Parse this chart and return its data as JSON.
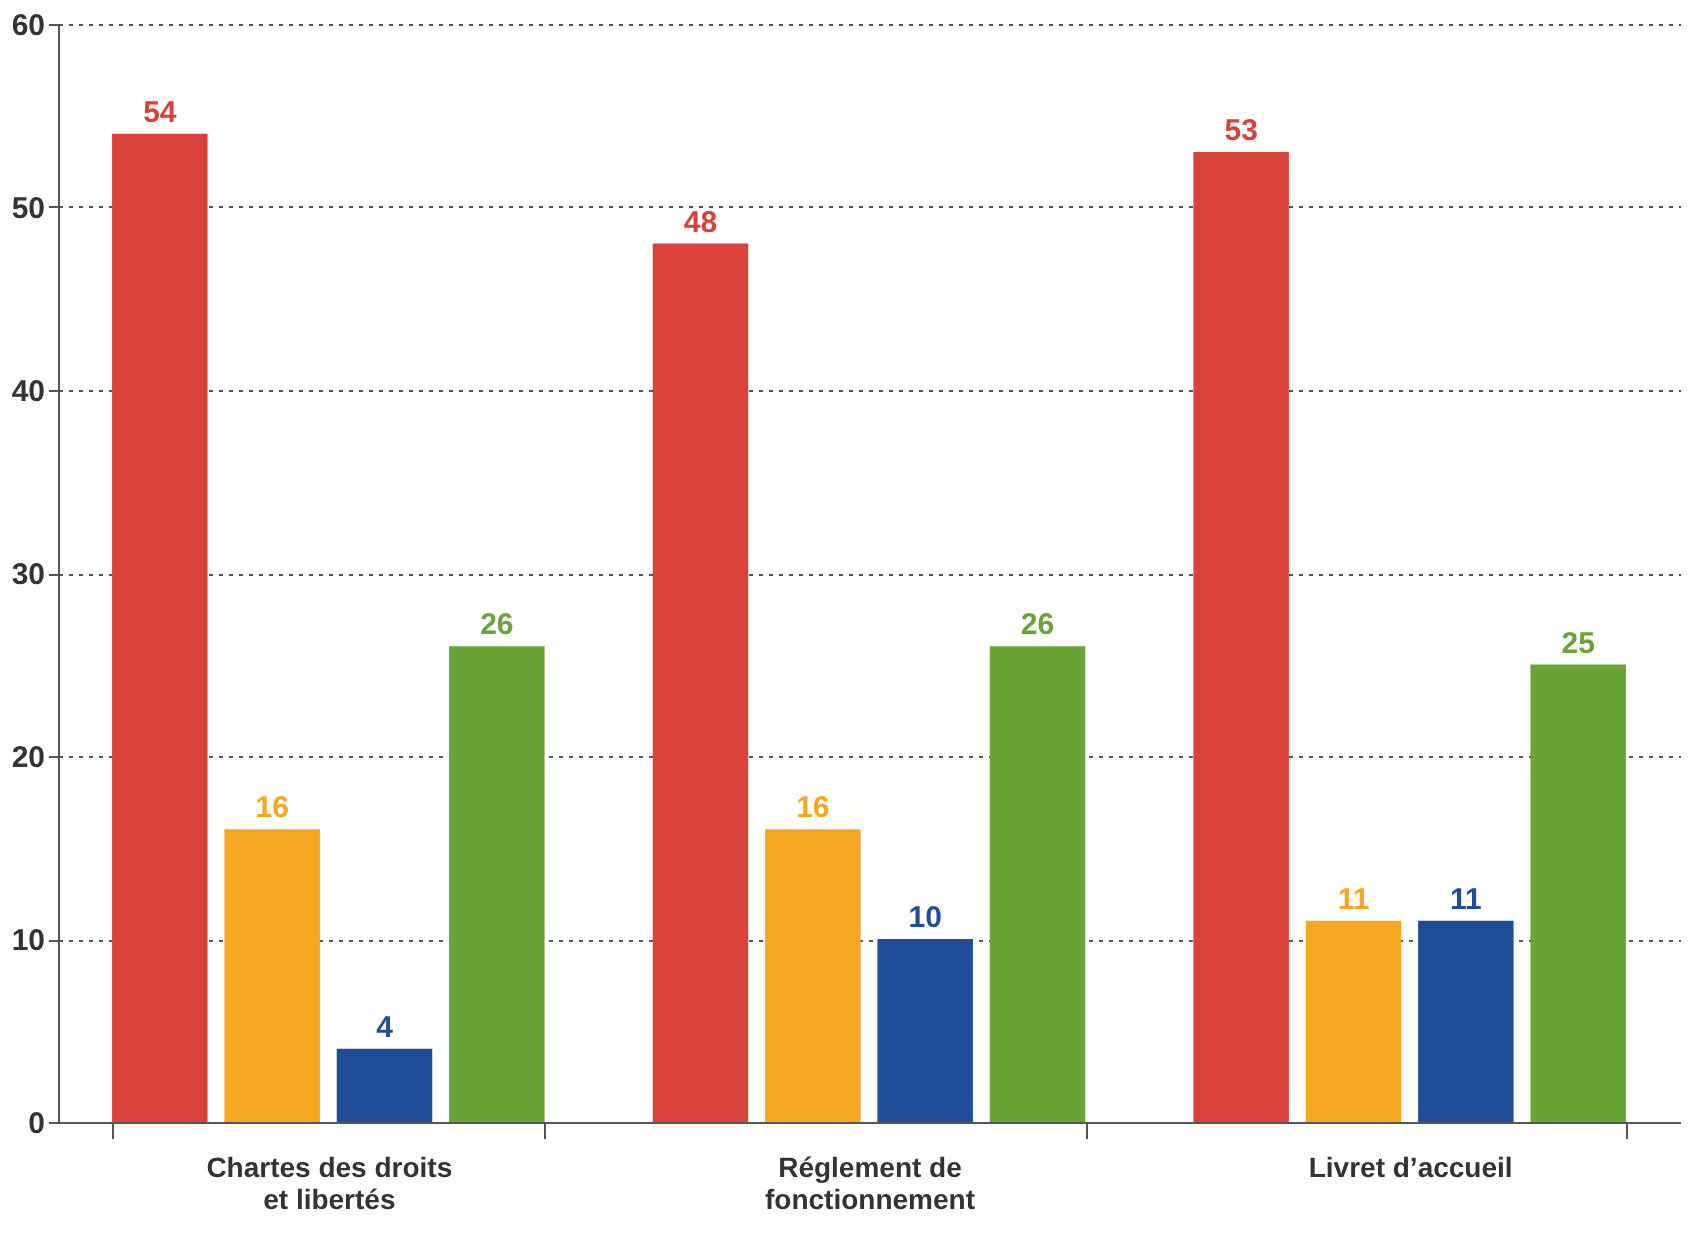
{
  "chart_data": {
    "type": "bar",
    "categories": [
      "Chartes des droits et libertés",
      "Réglement de fonctionnement",
      "Livret d’accueil"
    ],
    "series": [
      {
        "color": "#d9423a",
        "values": [
          54,
          48,
          53
        ]
      },
      {
        "color": "#f5a623",
        "values": [
          16,
          16,
          11
        ]
      },
      {
        "color": "#1f4e96",
        "values": [
          4,
          10,
          11
        ]
      },
      {
        "color": "#6aa336",
        "values": [
          26,
          26,
          25
        ]
      }
    ],
    "ylim": [
      0,
      60
    ],
    "yticks": [
      0,
      10,
      20,
      30,
      40,
      50,
      60
    ],
    "grid": "y",
    "data_labels": true
  }
}
